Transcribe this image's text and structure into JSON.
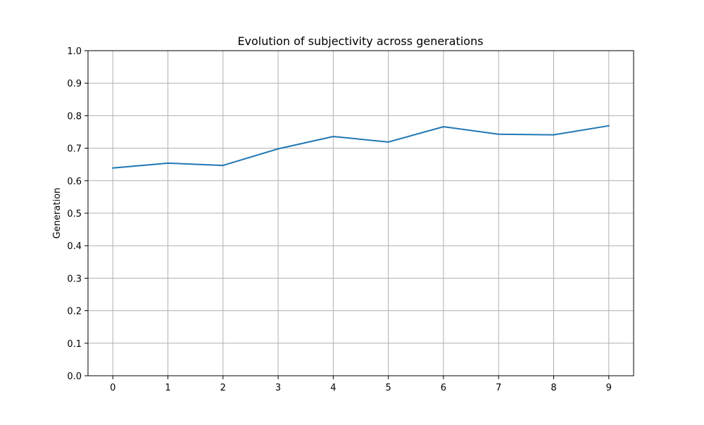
{
  "chart_data": {
    "type": "line",
    "title": "Evolution of subjectivity across generations",
    "xlabel": "",
    "ylabel": "Generation",
    "x": [
      0,
      1,
      2,
      3,
      4,
      5,
      6,
      7,
      8,
      9
    ],
    "series": [
      {
        "values": [
          0.639,
          0.654,
          0.647,
          0.698,
          0.736,
          0.719,
          0.766,
          0.743,
          0.741,
          0.769
        ],
        "color": "#1f77b4"
      }
    ],
    "xlim": [
      -0.45,
      9.45
    ],
    "ylim": [
      0.0,
      1.0
    ],
    "xticks": [
      "0",
      "1",
      "2",
      "3",
      "4",
      "5",
      "6",
      "7",
      "8",
      "9"
    ],
    "yticks": [
      "0.0",
      "0.1",
      "0.2",
      "0.3",
      "0.4",
      "0.5",
      "0.6",
      "0.7",
      "0.8",
      "0.9",
      "1.0"
    ],
    "grid": true,
    "grid_color": "#b0b0b0",
    "legend": "none"
  }
}
